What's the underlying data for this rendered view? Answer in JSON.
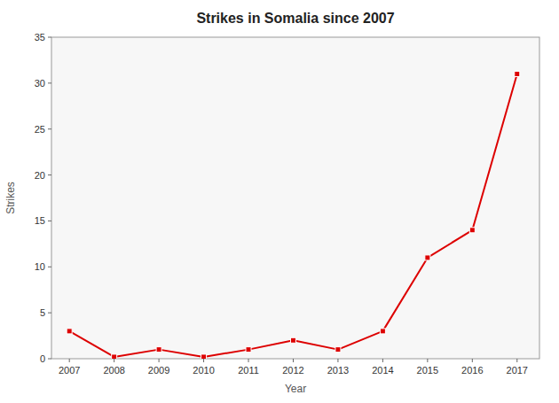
{
  "chart_data": {
    "type": "line",
    "title": "Strikes in Somalia since 2007",
    "x_label": "Year",
    "y_label": "Strikes",
    "x": [
      2007,
      2008,
      2009,
      2010,
      2011,
      2012,
      2013,
      2014,
      2015,
      2016,
      2017
    ],
    "values": [
      3,
      0.2,
      1,
      0.2,
      1,
      2,
      1,
      3,
      11,
      14,
      31
    ],
    "color": "#dd0000",
    "marker": "square",
    "xlim": [
      2006.6,
      2017.5
    ],
    "xticks": [
      2007,
      2008,
      2009,
      2010,
      2011,
      2012,
      2013,
      2014,
      2015,
      2016,
      2017
    ],
    "ylim": [
      0,
      35
    ],
    "yticks": [
      0,
      5,
      10,
      15,
      20,
      25,
      30,
      35
    ],
    "grid": false
  }
}
